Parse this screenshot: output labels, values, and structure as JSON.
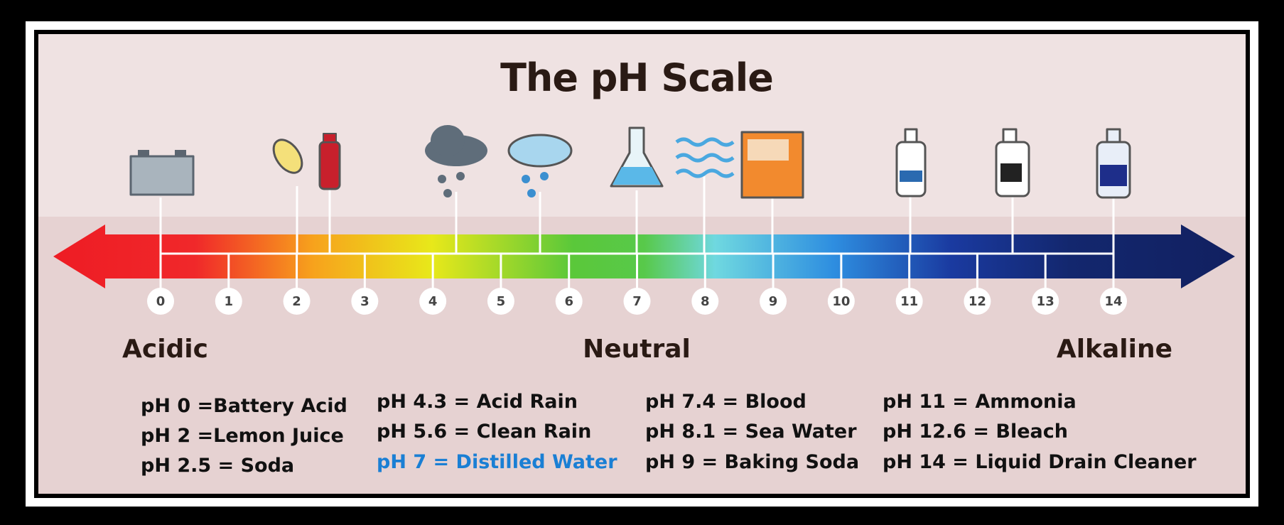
{
  "title": "The pH Scale",
  "scale": [
    0,
    1,
    2,
    3,
    4,
    5,
    6,
    7,
    8,
    9,
    10,
    11,
    12,
    13,
    14
  ],
  "regions": [
    "Acidic",
    "Neutral",
    "Alkaline"
  ],
  "examples": [
    [
      "pH 0 =Battery Acid",
      "pH 2 =Lemon Juice",
      "pH 2.5 =  Soda"
    ],
    [
      "pH 4.3 = Acid Rain",
      "pH 5.6 = Clean Rain",
      "pH 7 = Distilled Water"
    ],
    [
      "pH 7.4 = Blood",
      "pH 8.1 =  Sea Water",
      "pH 9 = Baking Soda"
    ],
    [
      "pH 11 = Ammonia",
      "pH 12.6 = Bleach",
      "pH 14 = Liquid Drain Cleaner"
    ]
  ]
}
